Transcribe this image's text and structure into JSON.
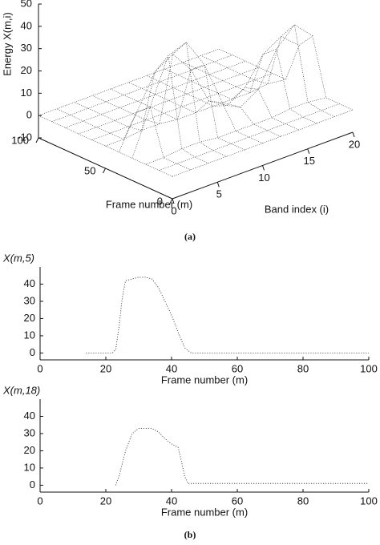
{
  "chart_data": [
    {
      "type": "surface3d",
      "zlabel": "Energy X(m,i)",
      "xlabel": "Frame number (m)",
      "ylabel": "Band index (i)",
      "x": [
        0,
        10,
        20,
        30,
        40,
        50,
        60,
        70,
        80,
        90,
        100
      ],
      "y": [
        0,
        2,
        4,
        6,
        8,
        10,
        12,
        14,
        16,
        18,
        20
      ],
      "z": [
        [
          0,
          0,
          0,
          0,
          0,
          0,
          0,
          0,
          0,
          0,
          0
        ],
        [
          0,
          0,
          0,
          0,
          0,
          0,
          0,
          0,
          0,
          0,
          0
        ],
        [
          0,
          0,
          1,
          1,
          0,
          0,
          0,
          0,
          1,
          1,
          0
        ],
        [
          0,
          20,
          40,
          43,
          30,
          10,
          5,
          10,
          25,
          33,
          25
        ],
        [
          0,
          15,
          30,
          35,
          25,
          8,
          3,
          8,
          20,
          25,
          18
        ],
        [
          0,
          0,
          1,
          1,
          0,
          0,
          0,
          0,
          0,
          1,
          0
        ],
        [
          0,
          0,
          0,
          0,
          0,
          0,
          0,
          0,
          0,
          0,
          0
        ],
        [
          0,
          0,
          0,
          0,
          0,
          0,
          0,
          0,
          0,
          0,
          0
        ],
        [
          0,
          0,
          0,
          0,
          0,
          0,
          0,
          0,
          0,
          0,
          0
        ],
        [
          0,
          0,
          0,
          0,
          0,
          0,
          0,
          0,
          0,
          0,
          0
        ],
        [
          0,
          0,
          0,
          0,
          0,
          0,
          0,
          0,
          0,
          0,
          0
        ]
      ],
      "xlim": [
        0,
        100
      ],
      "xticks": [
        0,
        50,
        100
      ],
      "ylim": [
        0,
        20
      ],
      "yticks": [
        0,
        5,
        10,
        15,
        20
      ],
      "zlim": [
        -10,
        50
      ],
      "zticks": [
        -10,
        0,
        10,
        20,
        30,
        40,
        50
      ],
      "color": "#222222"
    },
    {
      "type": "line",
      "ylabel": "X(m,5)",
      "xlabel": "Frame number (m)",
      "x": [
        14,
        22,
        23,
        24,
        25,
        26,
        28,
        30,
        32,
        34,
        36,
        38,
        40,
        42,
        44,
        46,
        100
      ],
      "series": [
        {
          "name": "X(m,5)",
          "color": "#222222",
          "values": [
            0,
            0,
            2,
            15,
            32,
            42,
            43,
            44,
            44,
            43,
            38,
            30,
            22,
            12,
            3,
            0,
            0
          ]
        }
      ],
      "xlim": [
        0,
        100
      ],
      "xticks": [
        0,
        20,
        40,
        60,
        80,
        100
      ],
      "ylim": [
        -4,
        50
      ],
      "yticks": [
        0,
        10,
        20,
        30,
        40
      ]
    },
    {
      "type": "line",
      "ylabel": "X(m,18)",
      "xlabel": "Frame number (m)",
      "x": [
        23,
        24,
        26,
        28,
        30,
        34,
        36,
        38,
        40,
        42,
        43,
        44,
        45,
        100
      ],
      "series": [
        {
          "name": "X(m,18)",
          "color": "#222222",
          "values": [
            0,
            5,
            20,
            30,
            33,
            33,
            31,
            27,
            24,
            22,
            14,
            5,
            1,
            1
          ]
        }
      ],
      "xlim": [
        0,
        100
      ],
      "xticks": [
        0,
        20,
        40,
        60,
        80,
        100
      ],
      "ylim": [
        -4,
        50
      ],
      "yticks": [
        0,
        10,
        20,
        30,
        40
      ]
    }
  ],
  "captions": {
    "a": "(a)",
    "b": "(b)"
  }
}
